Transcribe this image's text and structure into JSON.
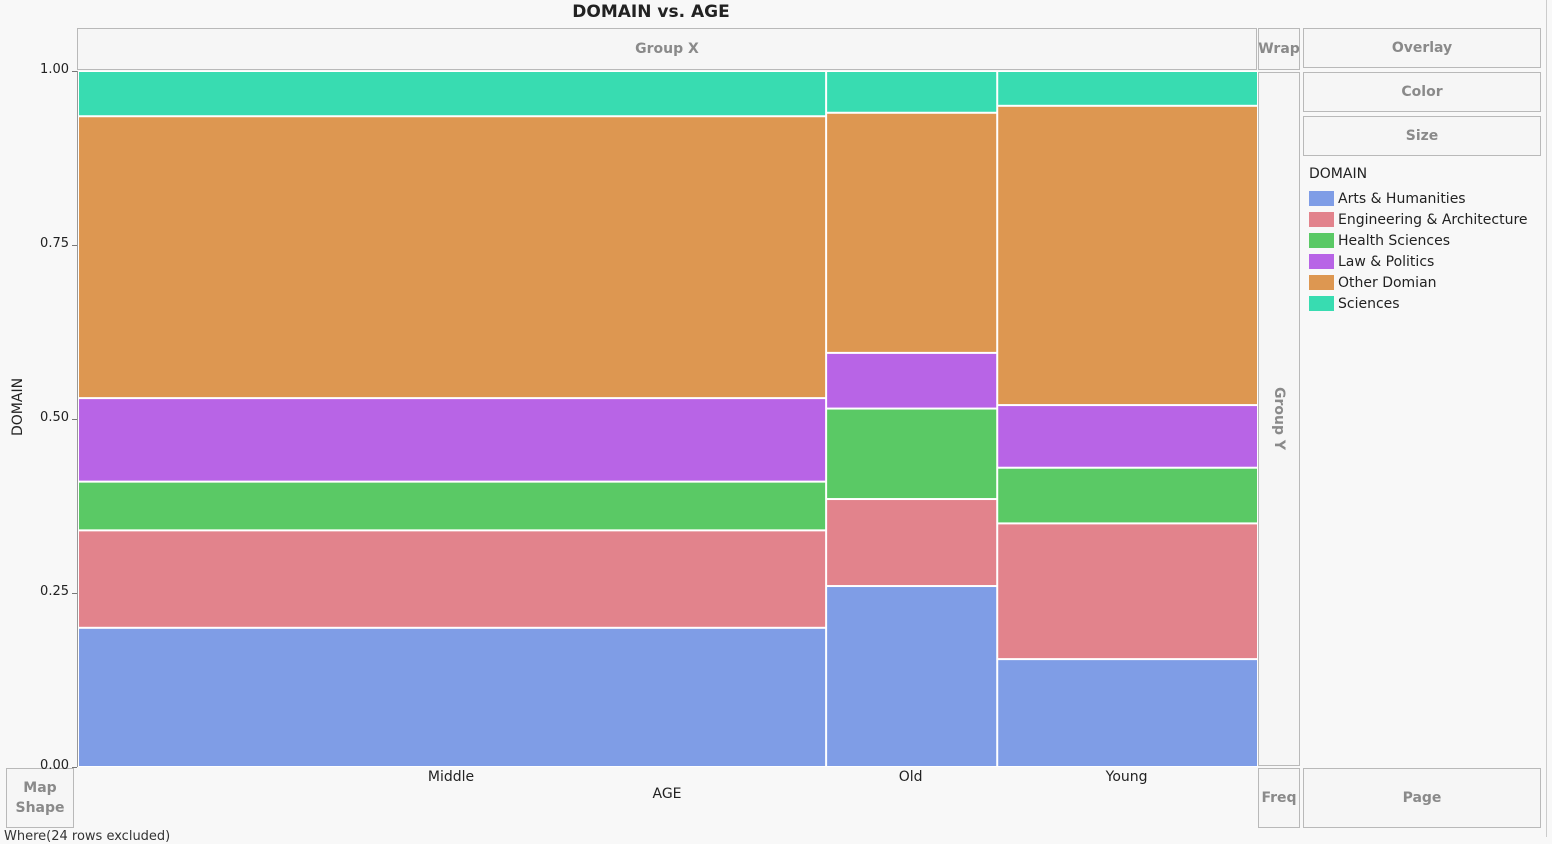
{
  "window": {
    "footer_text": "Where(24 rows excluded)"
  },
  "zones": {
    "group_x": "Group X",
    "group_y": "Group Y",
    "wrap": "Wrap",
    "overlay": "Overlay",
    "color": "Color",
    "size": "Size",
    "freq": "Freq",
    "page": "Page",
    "map_shape_line1": "Map",
    "map_shape_line2": "Shape"
  },
  "chart_data": {
    "type": "mosaic",
    "title": "DOMAIN vs. AGE",
    "xlabel": "AGE",
    "ylabel": "DOMAIN",
    "ylim": [
      0,
      1
    ],
    "yticks": [
      "0.00",
      "0.25",
      "0.50",
      "0.75",
      "1.00"
    ],
    "categories": [
      "Middle",
      "Old",
      "Young"
    ],
    "category_widths": [
      0.634,
      0.145,
      0.221
    ],
    "legend_title": "DOMAIN",
    "series": [
      {
        "name": "Arts & Humanities",
        "color": "#7f9de6",
        "values": [
          0.2,
          0.26,
          0.155
        ]
      },
      {
        "name": "Engineering & Architecture",
        "color": "#e2838c",
        "values": [
          0.14,
          0.125,
          0.195
        ]
      },
      {
        "name": "Health Sciences",
        "color": "#5ac965",
        "values": [
          0.07,
          0.13,
          0.08
        ]
      },
      {
        "name": "Law & Politics",
        "color": "#b864e6",
        "values": [
          0.12,
          0.08,
          0.09
        ]
      },
      {
        "name": "Other Domian",
        "color": "#dd9751",
        "values": [
          0.405,
          0.345,
          0.43
        ]
      },
      {
        "name": "Sciences",
        "color": "#38dcb1",
        "values": [
          0.065,
          0.06,
          0.05
        ]
      }
    ]
  }
}
